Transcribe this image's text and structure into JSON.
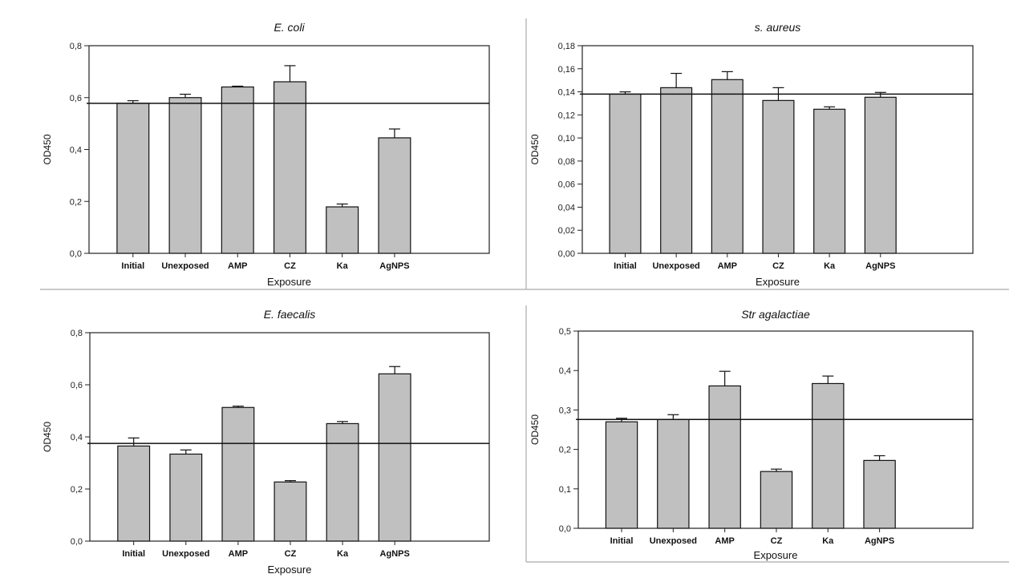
{
  "figure": {
    "colors": {
      "bar_fill": "#c0c0c0",
      "bar_stroke": "#111111",
      "divider": "#aaaaaa"
    }
  },
  "chart_data": [
    {
      "type": "bar",
      "title": "E. coli",
      "xlabel": "Exposure",
      "ylabel": "OD450",
      "categories": [
        "Initial",
        "Unexposed",
        "AMP",
        "CZ",
        "Ka",
        "AgNPS"
      ],
      "values": [
        0.578,
        0.6,
        0.641,
        0.661,
        0.179,
        0.445
      ],
      "error_upper": [
        0.588,
        0.613,
        0.644,
        0.723,
        0.19,
        0.479
      ],
      "reference_line": 0.578,
      "ylim": [
        0,
        0.8
      ],
      "yticks": [
        0.0,
        0.2,
        0.4,
        0.6,
        0.8
      ],
      "ytick_labels": [
        "0,0",
        "0,2",
        "0,4",
        "0,6",
        "0,8"
      ],
      "grid": false
    },
    {
      "type": "bar",
      "title": "s. aureus",
      "xlabel": "Exposure",
      "ylabel": "OD450",
      "categories": [
        "Initial",
        "Unexposed",
        "AMP",
        "CZ",
        "Ka",
        "AgNPS"
      ],
      "values": [
        0.138,
        0.1436,
        0.1506,
        0.1325,
        0.1249,
        0.1353
      ],
      "error_upper": [
        0.14,
        0.156,
        0.1575,
        0.1436,
        0.127,
        0.1395
      ],
      "reference_line": 0.138,
      "ylim": [
        0,
        0.18
      ],
      "yticks": [
        0.0,
        0.02,
        0.04,
        0.06,
        0.08,
        0.1,
        0.12,
        0.14,
        0.16,
        0.18
      ],
      "ytick_labels": [
        "0,00",
        "0,02",
        "0,04",
        "0,06",
        "0,08",
        "0,10",
        "0,12",
        "0,14",
        "0,16",
        "0,18"
      ],
      "grid": false
    },
    {
      "type": "bar",
      "title": "E. faecalis",
      "xlabel": "Exposure",
      "ylabel": "OD450",
      "categories": [
        "Initial",
        "Unexposed",
        "AMP",
        "CZ",
        "Ka",
        "AgNPS"
      ],
      "values": [
        0.365,
        0.334,
        0.513,
        0.227,
        0.451,
        0.642
      ],
      "error_upper": [
        0.396,
        0.35,
        0.518,
        0.232,
        0.459,
        0.67
      ],
      "reference_line": 0.375,
      "ylim": [
        0,
        0.8
      ],
      "yticks": [
        0.0,
        0.2,
        0.4,
        0.6,
        0.8
      ],
      "ytick_labels": [
        "0,0",
        "0,2",
        "0,4",
        "0,6",
        "0,8"
      ],
      "grid": false
    },
    {
      "type": "bar",
      "title": "Str agalactiae",
      "xlabel": "Exposure",
      "ylabel": "OD450",
      "categories": [
        "Initial",
        "Unexposed",
        "AMP",
        "CZ",
        "Ka",
        "AgNPS"
      ],
      "values": [
        0.27,
        0.276,
        0.361,
        0.144,
        0.367,
        0.172
      ],
      "error_upper": [
        0.279,
        0.288,
        0.398,
        0.15,
        0.386,
        0.184
      ],
      "reference_line": 0.276,
      "ylim": [
        0,
        0.5
      ],
      "yticks": [
        0.0,
        0.1,
        0.2,
        0.3,
        0.4,
        0.5
      ],
      "ytick_labels": [
        "0,0",
        "0,1",
        "0,2",
        "0,3",
        "0,4",
        "0,5"
      ],
      "grid": false
    }
  ]
}
